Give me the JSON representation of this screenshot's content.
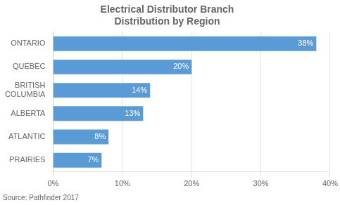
{
  "chart_data": {
    "type": "bar",
    "orientation": "horizontal",
    "title": "Electrical Distributor Branch\nDistribution by Region",
    "categories": [
      "ONTARIO",
      "QUEBEC",
      "BRITISH\nCOLUMBIA",
      "ALBERTA",
      "ATLANTIC",
      "PRAIRIES"
    ],
    "values": [
      38,
      20,
      14,
      13,
      8,
      7
    ],
    "value_labels": [
      "38%",
      "20%",
      "14%",
      "13%",
      "8%",
      "7%"
    ],
    "data_labels": true,
    "color": "#5b9bd5",
    "xlim": [
      0,
      40
    ],
    "xticks": [
      {
        "value": 0,
        "label": "0%"
      },
      {
        "value": 10,
        "label": "10%"
      },
      {
        "value": 20,
        "label": "20%"
      },
      {
        "value": 30,
        "label": "30%"
      },
      {
        "value": 40,
        "label": "40%"
      }
    ],
    "grid": true,
    "annotations": [
      "Source: Pathfinder 2017"
    ]
  }
}
